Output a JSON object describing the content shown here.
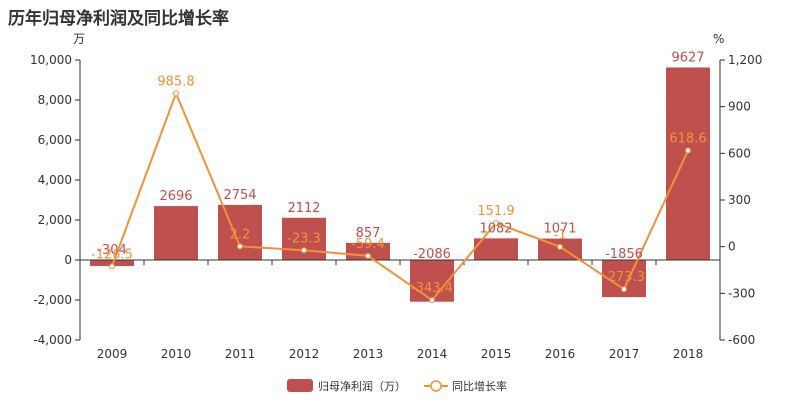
{
  "chart_data": {
    "type": "bar",
    "title": "历年归母净利润及同比增长率",
    "categories": [
      "2009",
      "2010",
      "2011",
      "2012",
      "2013",
      "2014",
      "2015",
      "2016",
      "2017",
      "2018"
    ],
    "series": [
      {
        "name": "归母净利润（万）",
        "type": "bar",
        "axis": "left",
        "values": [
          -304,
          2696,
          2754,
          2112,
          857,
          -2086,
          1082,
          1071,
          -1856,
          9627
        ],
        "labels": [
          "-304",
          "2696",
          "2754",
          "2112",
          "857",
          "-2086",
          "1082",
          "1071",
          "-1856",
          "9627"
        ]
      },
      {
        "name": "同比增长率",
        "type": "line",
        "axis": "right",
        "values": [
          -126.5,
          985.8,
          2.2,
          -23.3,
          -59.4,
          -343.4,
          151.9,
          -1,
          -273.3,
          618.6
        ],
        "labels": [
          "-126.5",
          "985.8",
          "2.2",
          "-23.3",
          "-59.4",
          "-343.4",
          "151.9",
          "-1",
          "-273.3",
          "618.6"
        ]
      }
    ],
    "y_left": {
      "unit": "万",
      "ylim": [
        -4000,
        10000
      ],
      "ticks": [
        "10,000",
        "8,000",
        "6,000",
        "4,000",
        "2,000",
        "0",
        "-2,000",
        "-4,000"
      ],
      "tick_values": [
        10000,
        8000,
        6000,
        4000,
        2000,
        0,
        -2000,
        -4000
      ]
    },
    "y_right": {
      "unit": "%",
      "ylim": [
        -600,
        1200
      ],
      "ticks": [
        "1,200",
        "900",
        "600",
        "300",
        "0",
        "-300",
        "-600"
      ],
      "tick_values": [
        1200,
        900,
        600,
        300,
        0,
        -300,
        -600
      ]
    },
    "grid": false,
    "legend_position": "bottom-center",
    "colors": {
      "bar": "#c0504d",
      "line": "#f0923a",
      "bar_label": "#c0504d",
      "line_label": "#f0923a"
    }
  }
}
